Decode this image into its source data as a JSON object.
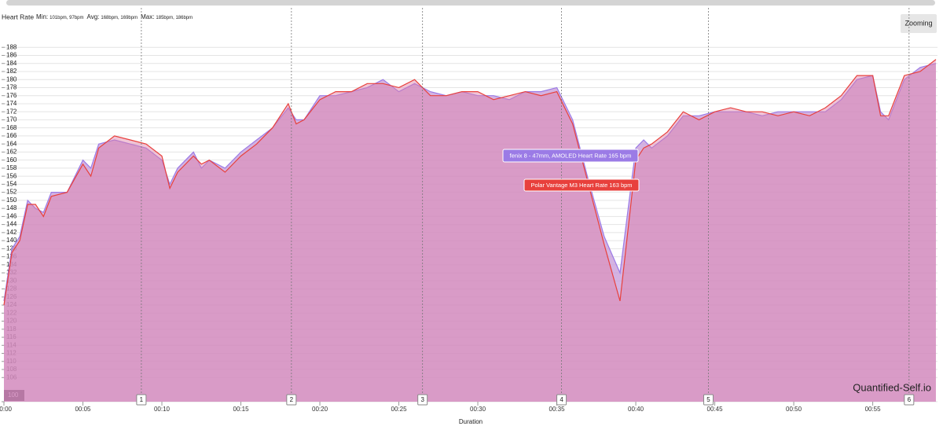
{
  "chart_data": {
    "type": "area",
    "title": "Heart Rate",
    "stats": [
      {
        "label": "Min:",
        "value": "101bpm, 97bpm"
      },
      {
        "label": "Avg:",
        "value": "168bpm, 169bpm"
      },
      {
        "label": "Max:",
        "value": "185bpm, 186bpm"
      }
    ],
    "button": "Zooming",
    "watermark": "Quantified-Self.io",
    "x_label": "Duration",
    "x": [
      0,
      0.5,
      1,
      1.5,
      2,
      2.5,
      3,
      4,
      5,
      5.5,
      6,
      7,
      8,
      9,
      10,
      10.5,
      11,
      12,
      12.5,
      13,
      14,
      15,
      16,
      17,
      18,
      18.5,
      19,
      20,
      21,
      22,
      23,
      24,
      25,
      26,
      27,
      28,
      29,
      30,
      31,
      32,
      33,
      34,
      35,
      36,
      37,
      38,
      39,
      40,
      40.5,
      41,
      42,
      43,
      44,
      45,
      46,
      47,
      48,
      49,
      50,
      51,
      52,
      53,
      54,
      55,
      55.5,
      56,
      57,
      58,
      59
    ],
    "series": [
      {
        "name": "fenix 8 - 47mm, AMOLED",
        "color": "#9b7be6",
        "values": [
          125,
          138,
          141,
          150,
          148,
          147,
          152,
          152,
          160,
          158,
          164,
          165,
          164,
          163,
          160,
          154,
          158,
          162,
          158,
          160,
          158,
          162,
          165,
          168,
          173,
          170,
          170,
          176,
          176,
          177,
          178,
          180,
          177,
          179,
          177,
          176,
          177,
          176,
          176,
          175,
          177,
          177,
          178,
          170,
          155,
          141,
          132,
          163,
          165,
          163,
          166,
          171,
          171,
          172,
          172,
          172,
          171,
          172,
          172,
          172,
          172,
          175,
          180,
          181,
          172,
          170,
          180,
          183,
          184
        ]
      },
      {
        "name": "Polar Vantage M3",
        "color": "#e8403c",
        "values": [
          124,
          137,
          140,
          149,
          149,
          146,
          151,
          152,
          159,
          156,
          163,
          166,
          165,
          164,
          161,
          153,
          157,
          161,
          159,
          160,
          157,
          161,
          164,
          168,
          174,
          169,
          170,
          175,
          177,
          177,
          179,
          179,
          178,
          180,
          176,
          176,
          177,
          177,
          175,
          176,
          177,
          176,
          177,
          169,
          154,
          139,
          125,
          160,
          163,
          164,
          167,
          172,
          170,
          172,
          173,
          172,
          172,
          171,
          172,
          171,
          173,
          176,
          181,
          181,
          171,
          171,
          181,
          182,
          185
        ]
      }
    ],
    "tooltips": [
      {
        "text": "fenix 8 - 47mm, AMOLED Heart Rate 165 bpm"
      },
      {
        "text": "Polar Vantage M3 Heart Rate 163 bpm"
      }
    ],
    "laps": [
      {
        "label": "1",
        "x": 8.7
      },
      {
        "label": "2",
        "x": 18.2
      },
      {
        "label": "3",
        "x": 26.5
      },
      {
        "label": "4",
        "x": 35.3
      },
      {
        "label": "5",
        "x": 44.6
      },
      {
        "label": "6",
        "x": 57.3
      }
    ],
    "xlim": [
      0,
      59.1
    ],
    "xticks": [
      {
        "value": 0,
        "label": "00:00"
      },
      {
        "value": 5,
        "label": "00:05"
      },
      {
        "value": 10,
        "label": "00:10"
      },
      {
        "value": 15,
        "label": "00:15"
      },
      {
        "value": 20,
        "label": "00:20"
      },
      {
        "value": 25,
        "label": "00:25"
      },
      {
        "value": 30,
        "label": "00:30"
      },
      {
        "value": 35,
        "label": "00:35"
      },
      {
        "value": 40,
        "label": "00:40"
      },
      {
        "value": 45,
        "label": "00:45"
      },
      {
        "value": 50,
        "label": "00:50"
      },
      {
        "value": 55,
        "label": "00:55"
      }
    ],
    "ylim": [
      100,
      198
    ],
    "yticks": [
      100,
      106,
      108,
      110,
      112,
      114,
      116,
      118,
      120,
      122,
      124,
      126,
      128,
      130,
      132,
      134,
      136,
      138,
      140,
      142,
      144,
      146,
      148,
      150,
      152,
      154,
      156,
      158,
      160,
      162,
      164,
      166,
      168,
      170,
      172,
      174,
      176,
      178,
      180,
      182,
      184,
      186,
      188
    ],
    "grid": true
  }
}
